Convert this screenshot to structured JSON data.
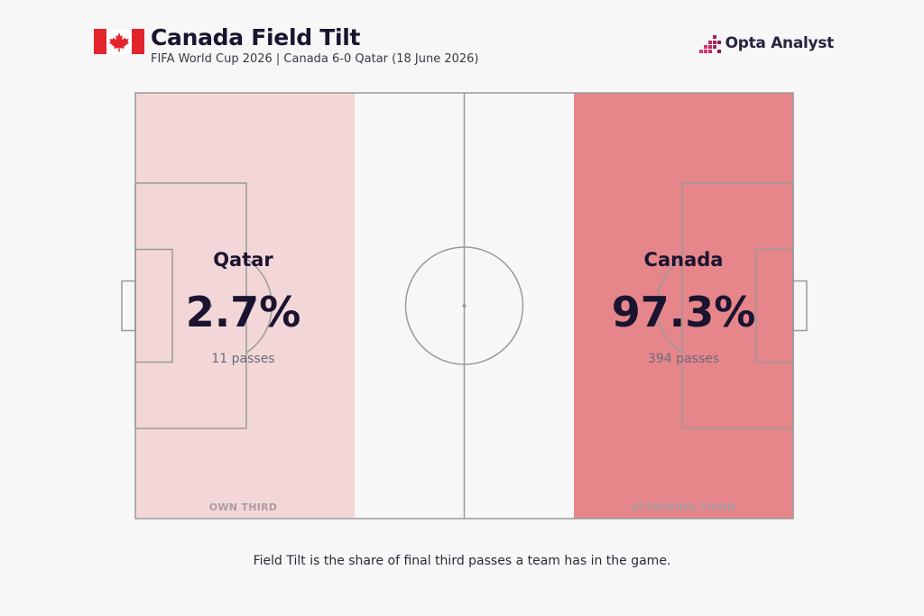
{
  "header": {
    "title": "Canada Field Tilt",
    "subtitle": "FIFA World Cup 2026 | Canada 6-0 Qatar (18 June 2026)",
    "brand": "Opta Analyst",
    "flag_icon": "canada-flag-icon",
    "brand_icon": "opta-bars-icon"
  },
  "chart_data": {
    "type": "bar",
    "categories": [
      "Qatar",
      "Canada"
    ],
    "series": [
      {
        "name": "",
        "values": [
          2.7,
          97.3
        ]
      }
    ],
    "passes": [
      11,
      394
    ],
    "title": "Canada Field Tilt",
    "teams": [
      {
        "name": "Qatar",
        "pct_label": "2.7%",
        "passes_label": "11 passes",
        "third_label": "OWN THIRD",
        "color": "#f3d7d8"
      },
      {
        "name": "Canada",
        "pct_label": "97.3%",
        "passes_label": "394 passes",
        "third_label": "ATTACKING THIRD",
        "color": "#e6858a"
      }
    ],
    "pitch_color": "#f7f7f7",
    "line_color": "#9a9a9a"
  },
  "footnote": "Field Tilt is the share of final third passes a team has in the game."
}
